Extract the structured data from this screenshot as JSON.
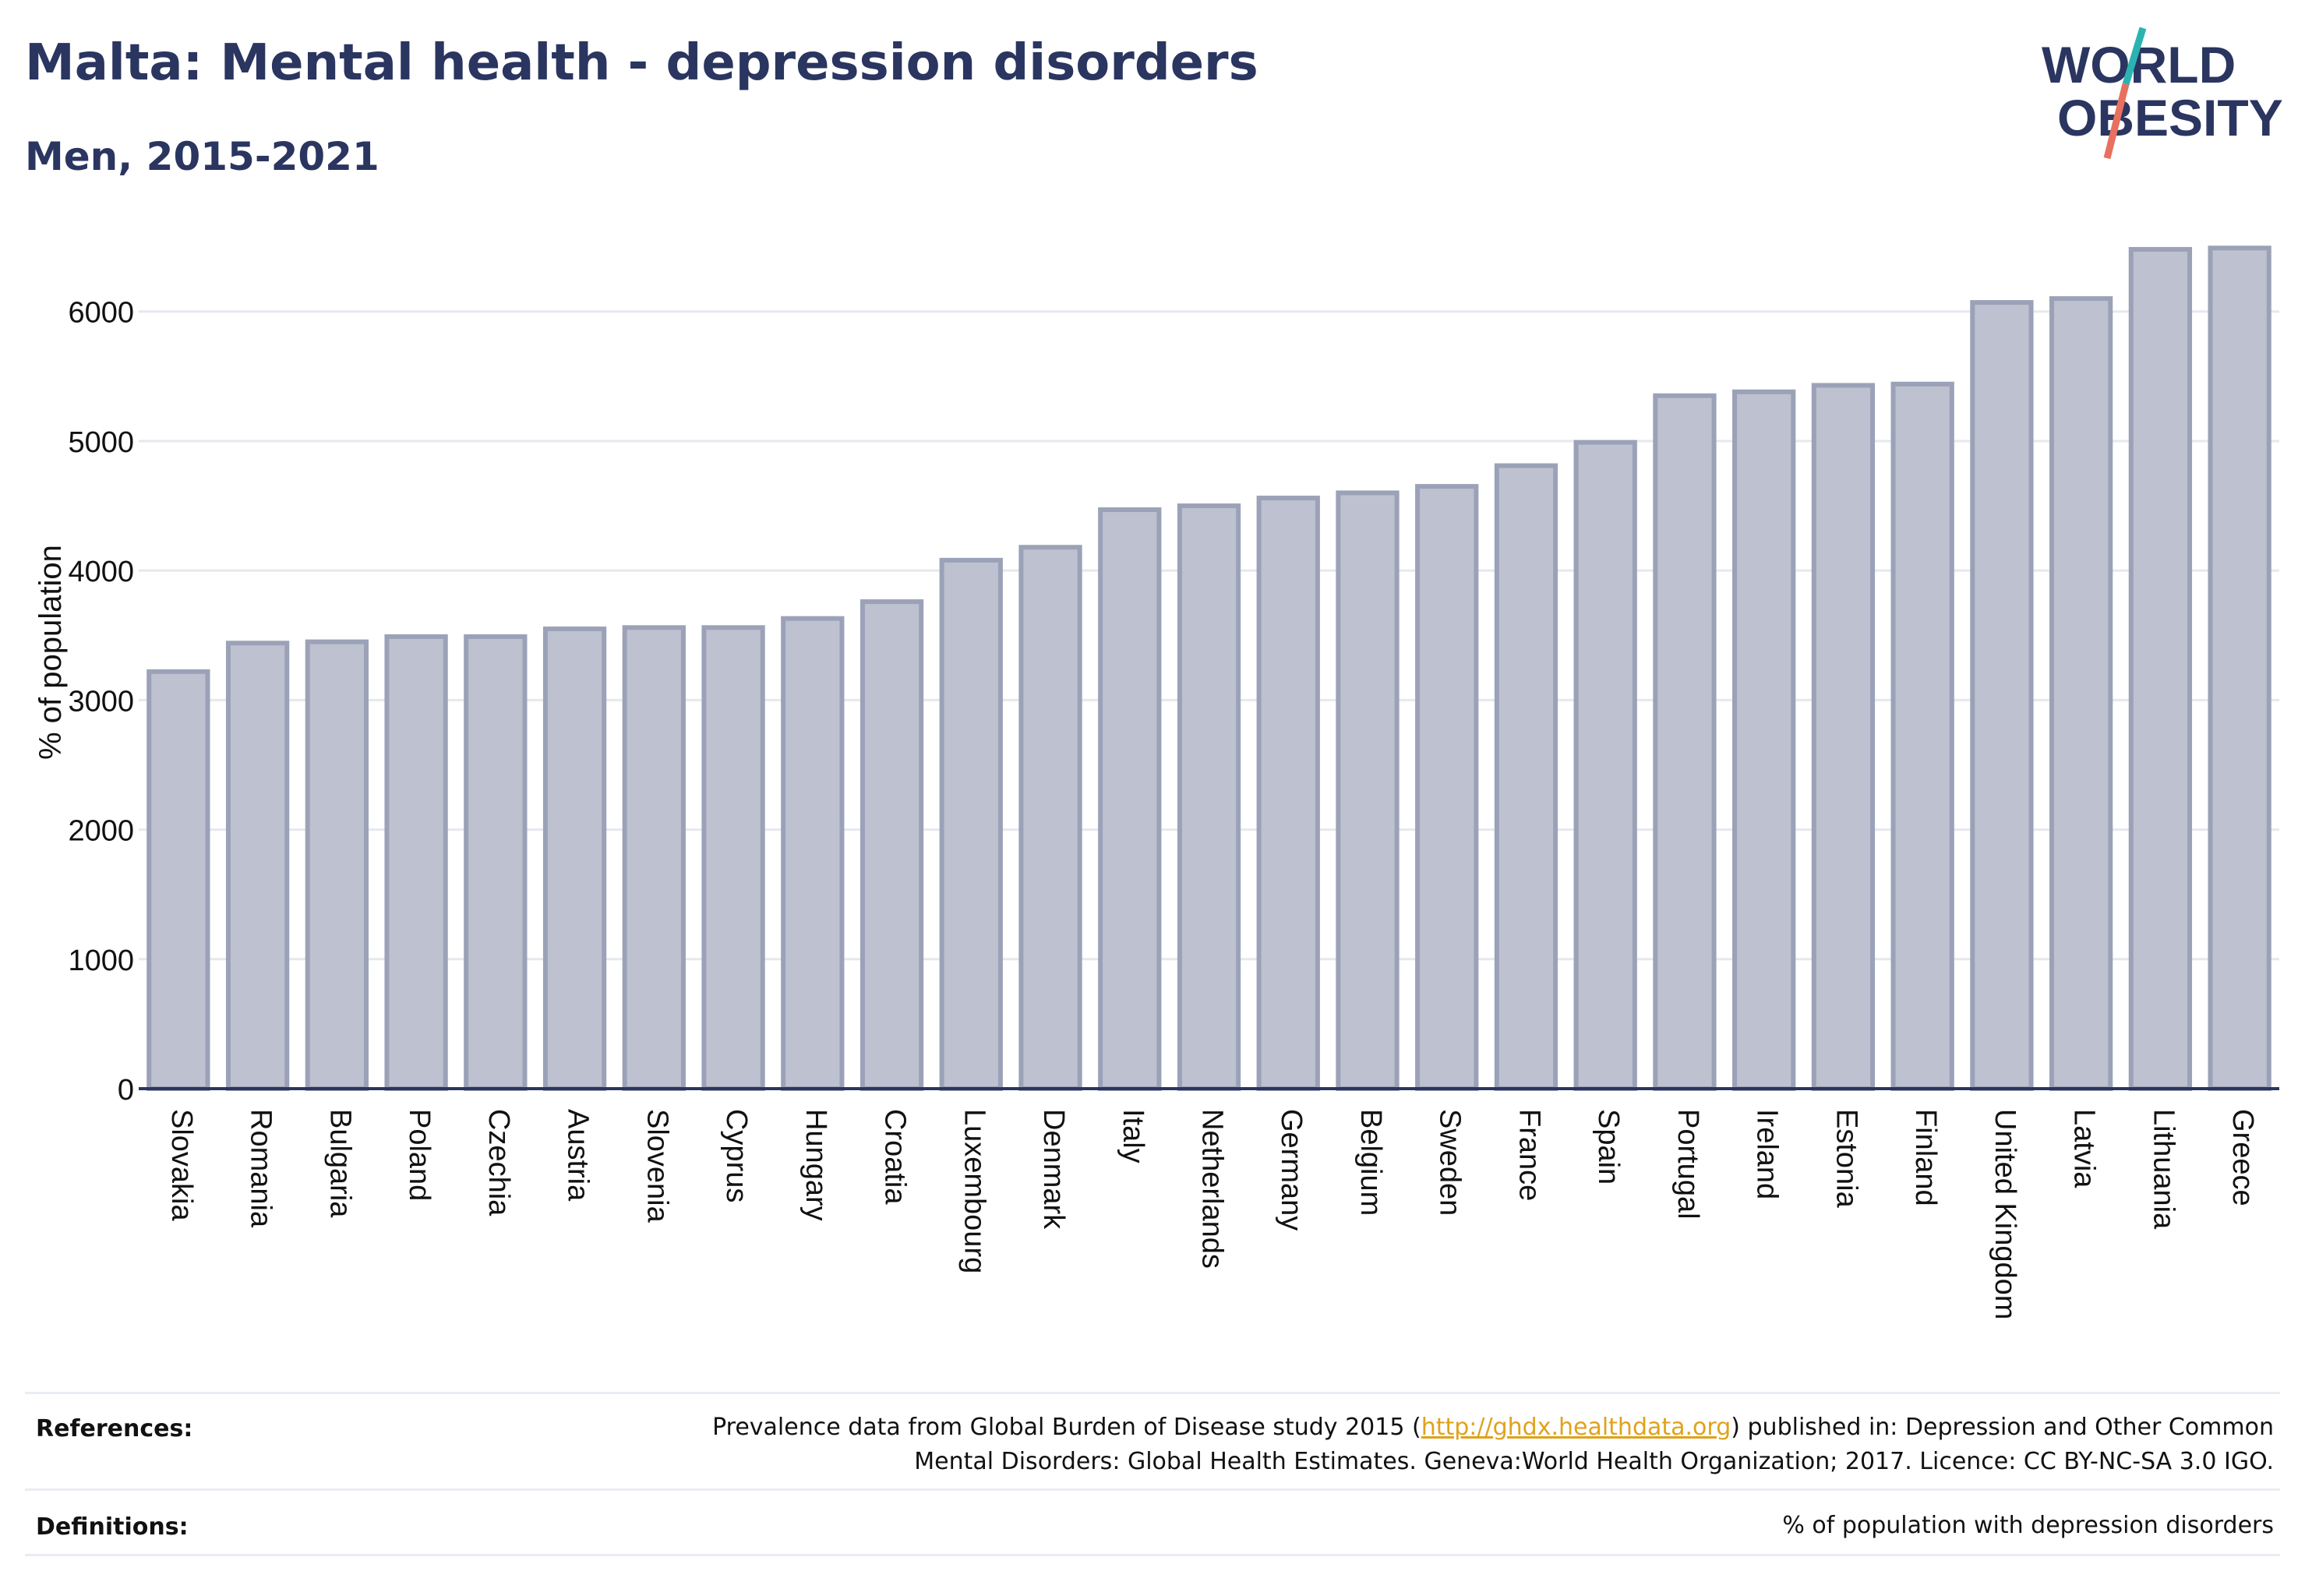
{
  "header": {
    "title": "Malta: Mental health - depression disorders",
    "subtitle": "Men, 2015-2021"
  },
  "logo": {
    "line1": "WORLD",
    "line2": "OBESITY"
  },
  "colors": {
    "bar_fill": "#bec1cf",
    "bar_stroke": "#9ba2b8",
    "text_dark": "#2a3560",
    "grid": "#e6e8ee",
    "link": "#e0a21b",
    "logo_teal": "#2bb3b1",
    "logo_red": "#e8705f"
  },
  "chart_data": {
    "type": "bar",
    "title": "Malta: Mental health - depression disorders",
    "subtitle": "Men, 2015-2021",
    "xlabel": "",
    "ylabel": "% of population",
    "ylim": [
      0,
      6600
    ],
    "yticks": [
      0,
      1000,
      2000,
      3000,
      4000,
      5000,
      6000
    ],
    "grid": true,
    "categories": [
      "Slovakia",
      "Romania",
      "Bulgaria",
      "Poland",
      "Czechia",
      "Austria",
      "Slovenia",
      "Cyprus",
      "Hungary",
      "Croatia",
      "Luxembourg",
      "Denmark",
      "Italy",
      "Netherlands",
      "Germany",
      "Belgium",
      "Sweden",
      "France",
      "Spain",
      "Portugal",
      "Ireland",
      "Estonia",
      "Finland",
      "United Kingdom",
      "Latvia",
      "Lithuania",
      "Greece"
    ],
    "values": [
      3220,
      3440,
      3450,
      3490,
      3490,
      3550,
      3560,
      3560,
      3630,
      3760,
      4080,
      4180,
      4470,
      4500,
      4560,
      4600,
      4650,
      4810,
      4990,
      5350,
      5380,
      5430,
      5440,
      6070,
      6100,
      6480,
      6490
    ]
  },
  "footer": {
    "references_label": "References:",
    "references_text_before": "Prevalence data from Global Burden of Disease study 2015 (",
    "references_link": "http://ghdx.healthdata.org",
    "references_text_after": ") published in: Depression and Other Common",
    "references_line2": "Mental Disorders: Global Health Estimates. Geneva:World Health Organization; 2017. Licence: CC BY-NC-SA 3.0 IGO.",
    "definitions_label": "Definitions:",
    "definitions_text": "% of population with depression disorders"
  }
}
